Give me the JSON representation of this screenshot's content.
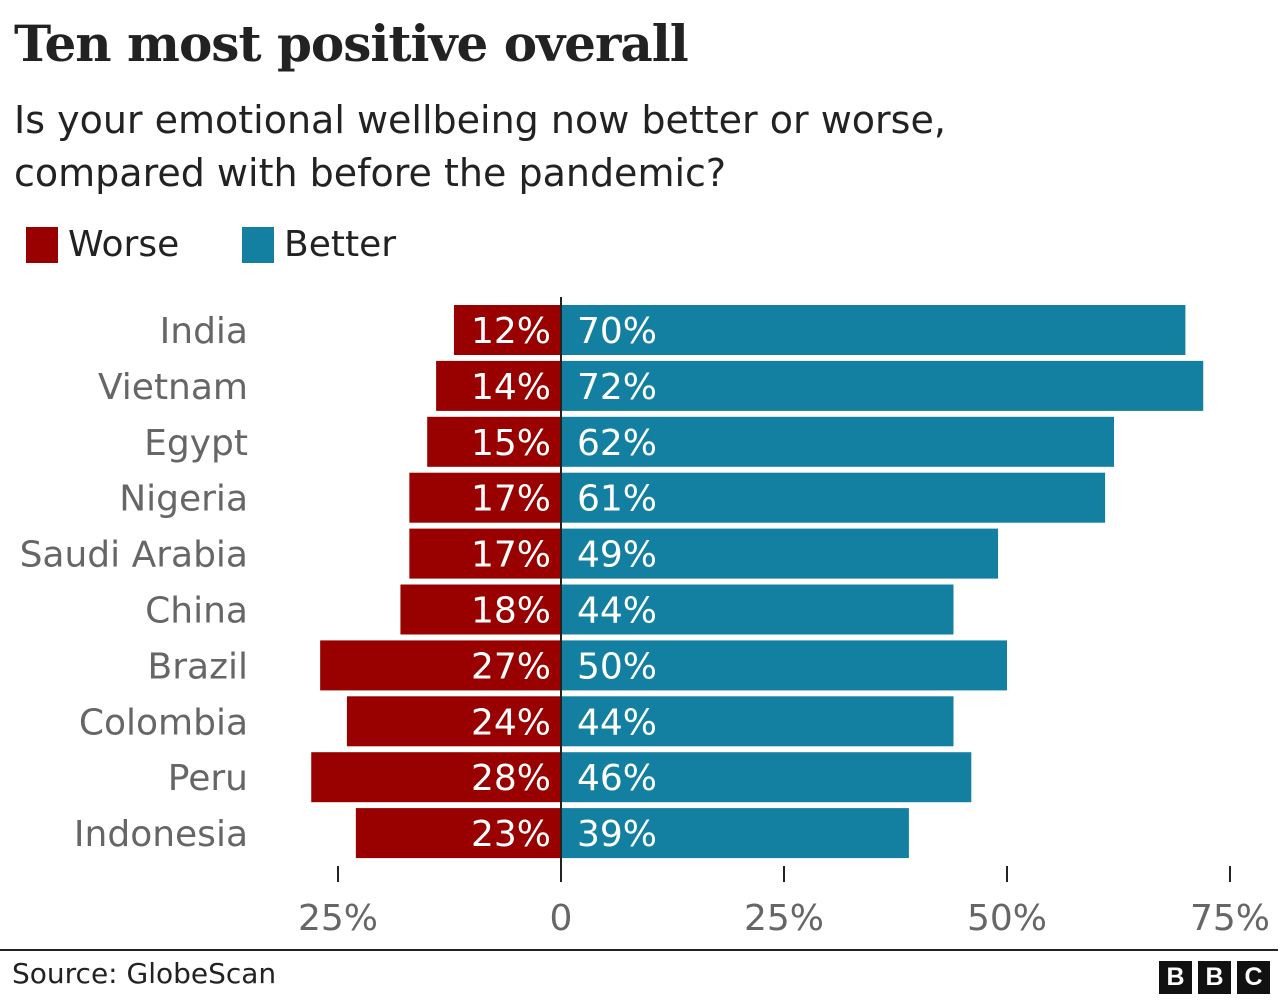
{
  "chart_data": {
    "type": "bar",
    "orientation": "horizontal-diverging",
    "title": "Ten most positive overall",
    "subtitle": "Is your emotional wellbeing now better or worse, compared with before the pandemic?",
    "categories": [
      "India",
      "Vietnam",
      "Egypt",
      "Nigeria",
      "Saudi Arabia",
      "China",
      "Brazil",
      "Colombia",
      "Peru",
      "Indonesia"
    ],
    "series": [
      {
        "name": "Worse",
        "color": "#990000",
        "values": [
          12,
          14,
          15,
          17,
          17,
          18,
          27,
          24,
          28,
          23
        ],
        "labels": [
          "12%",
          "14%",
          "15%",
          "17%",
          "17%",
          "18%",
          "27%",
          "24%",
          "28%",
          "23%"
        ]
      },
      {
        "name": "Better",
        "color": "#1380A1",
        "values": [
          70,
          72,
          62,
          61,
          49,
          44,
          50,
          44,
          46,
          39
        ],
        "labels": [
          "70%",
          "72%",
          "62%",
          "61%",
          "49%",
          "44%",
          "50%",
          "44%",
          "46%",
          "39%"
        ]
      }
    ],
    "xlim": [
      -28,
      75
    ],
    "xticks": [
      -25,
      0,
      25,
      50,
      75
    ],
    "xtick_labels": [
      "25%",
      "0",
      "25%",
      "50%",
      "75%"
    ],
    "grid": false,
    "legend_position": "top-left"
  },
  "footer": {
    "source": "Source: GlobeScan",
    "logo": "BBC"
  }
}
